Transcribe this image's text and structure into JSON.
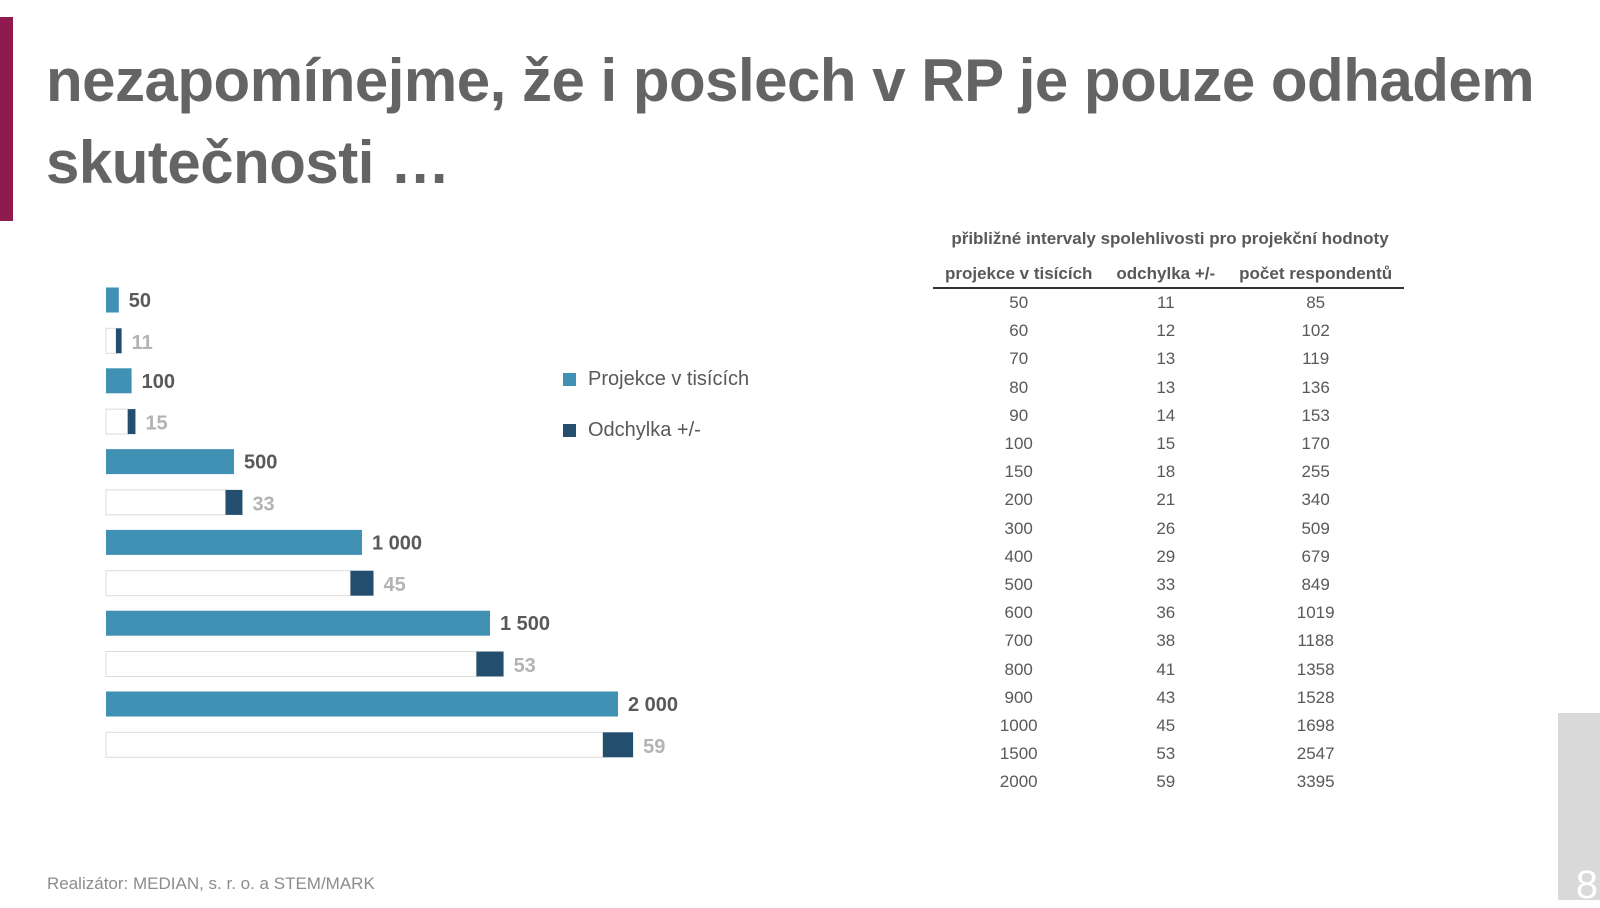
{
  "title": "nezapomínejme, že i poslech v RP je pouze odhadem skutečnosti …",
  "colors": {
    "accent": "#8e1a4e",
    "projection": "#4191b5",
    "deviation": "#234e6e",
    "title": "#646464"
  },
  "chart_data": {
    "type": "bar",
    "orientation": "horizontal",
    "categories": [
      "50",
      "100",
      "500",
      "1 000",
      "1 500",
      "2 000"
    ],
    "series": [
      {
        "name": "Projekce v tisících",
        "values": [
          50,
          100,
          500,
          1000,
          1500,
          2000
        ],
        "labels": [
          "50",
          "100",
          "500",
          "1 000",
          "1 500",
          "2 000"
        ]
      },
      {
        "name": "Odchylka +/-",
        "values": [
          11,
          15,
          33,
          45,
          53,
          59
        ],
        "labels": [
          "11",
          "15",
          "33",
          "45",
          "53",
          "59"
        ]
      }
    ],
    "xlim": [
      0,
      2000
    ],
    "grid": false,
    "legend": "right"
  },
  "table": {
    "title": "přibližné intervaly spolehlivosti pro projekční hodnoty",
    "headers": [
      "projekce v tisících",
      "odchylka +/-",
      "počet respondentů"
    ],
    "rows": [
      [
        "50",
        "11",
        "85"
      ],
      [
        "60",
        "12",
        "102"
      ],
      [
        "70",
        "13",
        "119"
      ],
      [
        "80",
        "13",
        "136"
      ],
      [
        "90",
        "14",
        "153"
      ],
      [
        "100",
        "15",
        "170"
      ],
      [
        "150",
        "18",
        "255"
      ],
      [
        "200",
        "21",
        "340"
      ],
      [
        "300",
        "26",
        "509"
      ],
      [
        "400",
        "29",
        "679"
      ],
      [
        "500",
        "33",
        "849"
      ],
      [
        "600",
        "36",
        "1019"
      ],
      [
        "700",
        "38",
        "1188"
      ],
      [
        "800",
        "41",
        "1358"
      ],
      [
        "900",
        "43",
        "1528"
      ],
      [
        "1000",
        "45",
        "1698"
      ],
      [
        "1500",
        "53",
        "2547"
      ],
      [
        "2000",
        "59",
        "3395"
      ]
    ]
  },
  "footer": "Realizátor: MEDIAN, s. r. o. a STEM/MARK",
  "page_number": "8"
}
